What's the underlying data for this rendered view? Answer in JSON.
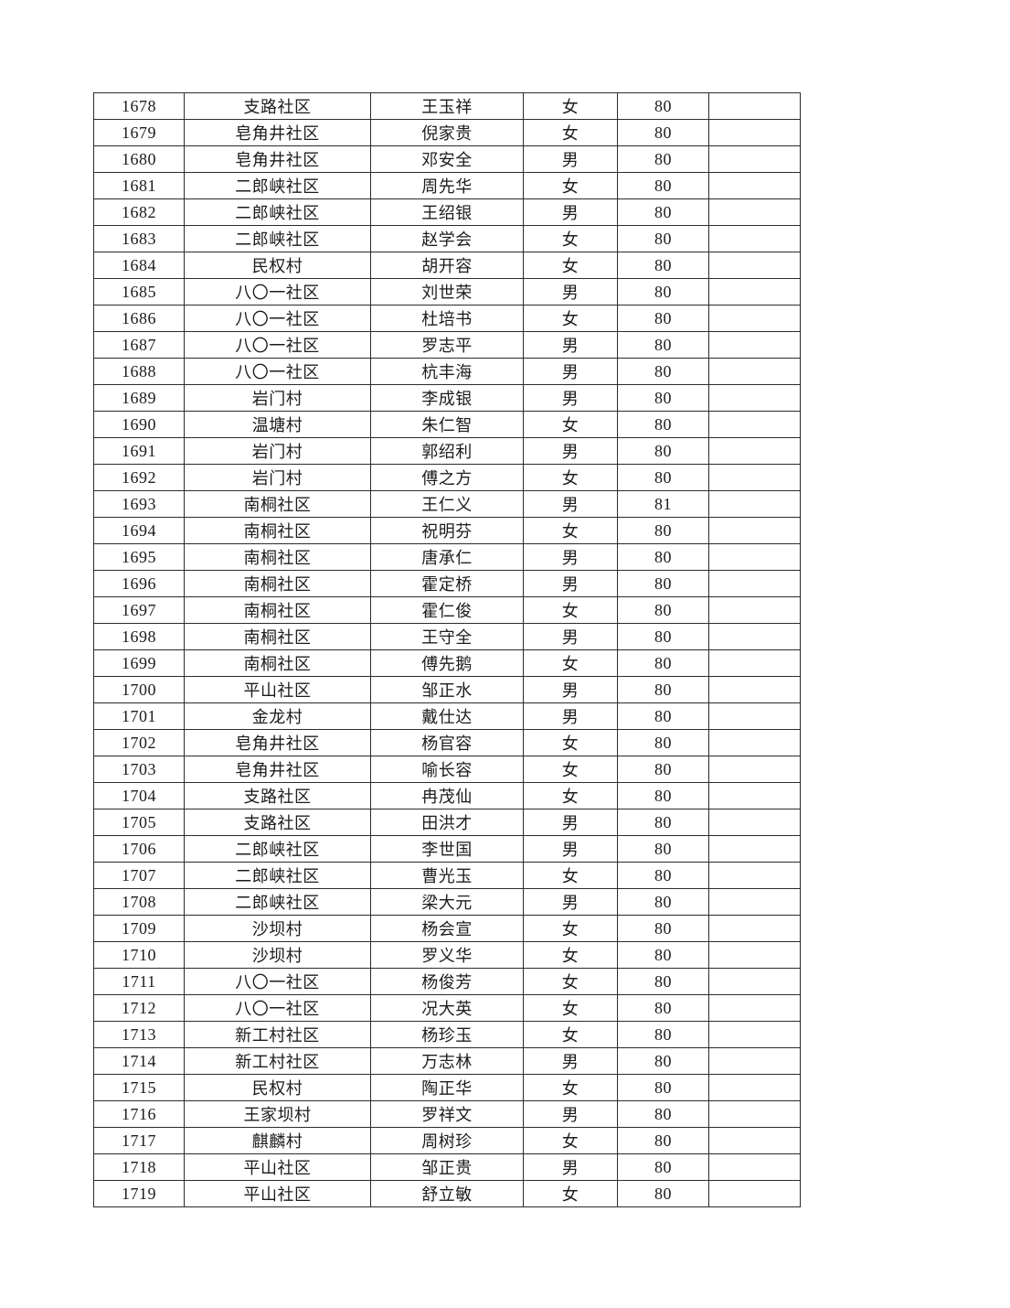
{
  "document": {
    "background_color": "#ffffff",
    "text_color": "#1c1c1c",
    "border_color": "#2b2b2b"
  },
  "table": {
    "column_keys": [
      "id",
      "community",
      "name",
      "gender",
      "age",
      "note"
    ],
    "rows": [
      [
        "1678",
        "支路社区",
        "王玉祥",
        "女",
        "80",
        ""
      ],
      [
        "1679",
        "皂角井社区",
        "倪家贵",
        "女",
        "80",
        ""
      ],
      [
        "1680",
        "皂角井社区",
        "邓安全",
        "男",
        "80",
        ""
      ],
      [
        "1681",
        "二郎峡社区",
        "周先华",
        "女",
        "80",
        ""
      ],
      [
        "1682",
        "二郎峡社区",
        "王绍银",
        "男",
        "80",
        ""
      ],
      [
        "1683",
        "二郎峡社区",
        "赵学会",
        "女",
        "80",
        ""
      ],
      [
        "1684",
        "民权村",
        "胡开容",
        "女",
        "80",
        ""
      ],
      [
        "1685",
        "八〇一社区",
        "刘世荣",
        "男",
        "80",
        ""
      ],
      [
        "1686",
        "八〇一社区",
        "杜培书",
        "女",
        "80",
        ""
      ],
      [
        "1687",
        "八〇一社区",
        "罗志平",
        "男",
        "80",
        ""
      ],
      [
        "1688",
        "八〇一社区",
        "杭丰海",
        "男",
        "80",
        ""
      ],
      [
        "1689",
        "岩门村",
        "李成银",
        "男",
        "80",
        ""
      ],
      [
        "1690",
        "温塘村",
        "朱仁智",
        "女",
        "80",
        ""
      ],
      [
        "1691",
        "岩门村",
        "郭绍利",
        "男",
        "80",
        ""
      ],
      [
        "1692",
        "岩门村",
        "傅之方",
        "女",
        "80",
        ""
      ],
      [
        "1693",
        "南桐社区",
        "王仁义",
        "男",
        "81",
        ""
      ],
      [
        "1694",
        "南桐社区",
        "祝明芬",
        "女",
        "80",
        ""
      ],
      [
        "1695",
        "南桐社区",
        "唐承仁",
        "男",
        "80",
        ""
      ],
      [
        "1696",
        "南桐社区",
        "霍定桥",
        "男",
        "80",
        ""
      ],
      [
        "1697",
        "南桐社区",
        "霍仁俊",
        "女",
        "80",
        ""
      ],
      [
        "1698",
        "南桐社区",
        "王守全",
        "男",
        "80",
        ""
      ],
      [
        "1699",
        "南桐社区",
        "傅先鹅",
        "女",
        "80",
        ""
      ],
      [
        "1700",
        "平山社区",
        "邹正水",
        "男",
        "80",
        ""
      ],
      [
        "1701",
        "金龙村",
        "戴仕达",
        "男",
        "80",
        ""
      ],
      [
        "1702",
        "皂角井社区",
        "杨官容",
        "女",
        "80",
        ""
      ],
      [
        "1703",
        "皂角井社区",
        "喻长容",
        "女",
        "80",
        ""
      ],
      [
        "1704",
        "支路社区",
        "冉茂仙",
        "女",
        "80",
        ""
      ],
      [
        "1705",
        "支路社区",
        "田洪才",
        "男",
        "80",
        ""
      ],
      [
        "1706",
        "二郎峡社区",
        "李世国",
        "男",
        "80",
        ""
      ],
      [
        "1707",
        "二郎峡社区",
        "曹光玉",
        "女",
        "80",
        ""
      ],
      [
        "1708",
        "二郎峡社区",
        "梁大元",
        "男",
        "80",
        ""
      ],
      [
        "1709",
        "沙坝村",
        "杨会宣",
        "女",
        "80",
        ""
      ],
      [
        "1710",
        "沙坝村",
        "罗义华",
        "女",
        "80",
        ""
      ],
      [
        "1711",
        "八〇一社区",
        "杨俊芳",
        "女",
        "80",
        ""
      ],
      [
        "1712",
        "八〇一社区",
        "况大英",
        "女",
        "80",
        ""
      ],
      [
        "1713",
        "新工村社区",
        "杨珍玉",
        "女",
        "80",
        ""
      ],
      [
        "1714",
        "新工村社区",
        "万志林",
        "男",
        "80",
        ""
      ],
      [
        "1715",
        "民权村",
        "陶正华",
        "女",
        "80",
        ""
      ],
      [
        "1716",
        "王家坝村",
        "罗祥文",
        "男",
        "80",
        ""
      ],
      [
        "1717",
        "麒麟村",
        "周树珍",
        "女",
        "80",
        ""
      ],
      [
        "1718",
        "平山社区",
        "邹正贵",
        "男",
        "80",
        ""
      ],
      [
        "1719",
        "平山社区",
        "舒立敏",
        "女",
        "80",
        ""
      ]
    ]
  }
}
